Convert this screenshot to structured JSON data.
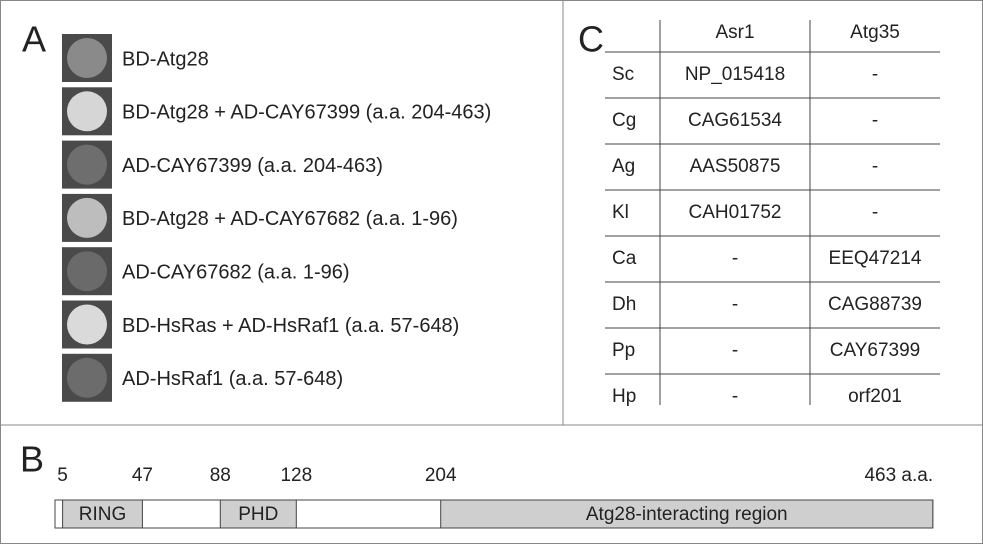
{
  "panel_a": {
    "letter": "A",
    "rows": [
      {
        "label": "BD-Atg28",
        "spot_color": "#8a8a8a"
      },
      {
        "label": "BD-Atg28 + AD-CAY67399 (a.a. 204-463)",
        "spot_color": "#d6d6d6"
      },
      {
        "label": "AD-CAY67399 (a.a. 204-463)",
        "spot_color": "#6e6e6e"
      },
      {
        "label": "BD-Atg28 + AD-CAY67682 (a.a. 1-96)",
        "spot_color": "#bdbdbd"
      },
      {
        "label": "AD-CAY67682 (a.a. 1-96)",
        "spot_color": "#6a6a6a"
      },
      {
        "label": "BD-HsRas + AD-HsRaf1 (a.a. 57-648)",
        "spot_color": "#dadada"
      },
      {
        "label": "AD-HsRaf1 (a.a. 57-648)",
        "spot_color": "#6c6c6c"
      }
    ]
  },
  "panel_b": {
    "letter": "B",
    "ticks": [
      5,
      47,
      88,
      128,
      204,
      {
        "value": 463,
        "label": "463 a.a."
      }
    ],
    "domains": [
      {
        "label": "RING",
        "start": 5,
        "end": 47
      },
      {
        "label": "PHD",
        "start": 88,
        "end": 128
      },
      {
        "label": "Atg28-interacting region",
        "start": 204,
        "end": 463
      }
    ],
    "domain_color": "#cfcfcf"
  },
  "panel_c": {
    "letter": "C",
    "columns": [
      "Asr1",
      "Atg35"
    ],
    "rows": [
      [
        "Sc",
        "NP_015418",
        "-"
      ],
      [
        "Cg",
        "CAG61534",
        "-"
      ],
      [
        "Ag",
        "AAS50875",
        "-"
      ],
      [
        "Kl",
        "CAH01752",
        "-"
      ],
      [
        "Ca",
        "-",
        "EEQ47214"
      ],
      [
        "Dh",
        "-",
        "CAG88739"
      ],
      [
        "Pp",
        "-",
        "CAY67399"
      ],
      [
        "Hp",
        "-",
        "orf201"
      ]
    ]
  }
}
